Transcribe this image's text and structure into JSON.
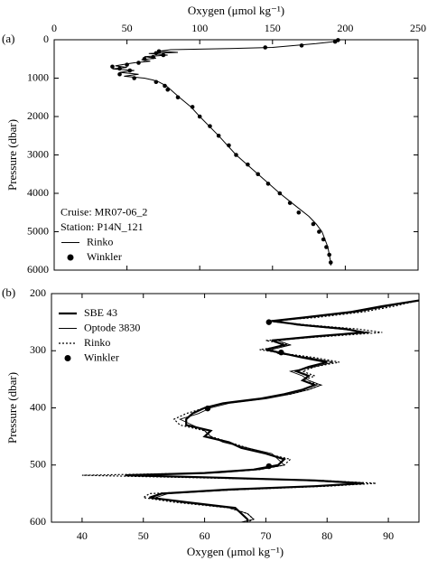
{
  "chart_data": [
    {
      "type": "line",
      "panel_label": "(a)",
      "x_label": "Oxygen (μmol kg⁻¹)",
      "y_label": "Pressure (dbar)",
      "xlim": [
        0,
        250
      ],
      "xticks": [
        0,
        50,
        100,
        150,
        200,
        250
      ],
      "x_axis_position": "top",
      "ylim": [
        0,
        6000
      ],
      "yticks": [
        0,
        1000,
        2000,
        3000,
        4000,
        5000,
        6000
      ],
      "y_inverted": true,
      "legend": "lower left",
      "annotations": [
        "Cruise: MR07-06_2",
        "Station: P14N_121"
      ],
      "series": [
        {
          "name": "Rinko",
          "color": "#000000",
          "style": "solid",
          "width": 1,
          "x": [
            196,
            195,
            190,
            180,
            165,
            150,
            120,
            80,
            72,
            85,
            65,
            78,
            62,
            70,
            60,
            66,
            55,
            48,
            42,
            50,
            40,
            55,
            45,
            58,
            48,
            62,
            68,
            72,
            77,
            80,
            83,
            86,
            94,
            100,
            113,
            125,
            140,
            155,
            165,
            175,
            180,
            184,
            188,
            190,
            190
          ],
          "y": [
            5,
            30,
            60,
            100,
            150,
            200,
            230,
            260,
            300,
            330,
            360,
            400,
            440,
            480,
            520,
            560,
            600,
            640,
            680,
            720,
            760,
            800,
            850,
            900,
            950,
            1000,
            1050,
            1100,
            1200,
            1300,
            1400,
            1500,
            1750,
            2000,
            2500,
            3000,
            3500,
            4000,
            4300,
            4600,
            4800,
            5000,
            5400,
            5800,
            5880
          ]
        },
        {
          "name": "Winkler",
          "color": "#000000",
          "style": "points",
          "x": [
            195,
            193,
            170,
            145,
            72,
            70,
            75,
            68,
            62,
            58,
            50,
            40,
            45,
            52,
            45,
            55,
            70,
            76,
            78,
            85,
            95,
            100,
            107,
            113,
            120,
            125,
            133,
            140,
            147,
            155,
            162,
            168,
            178,
            182,
            185,
            187,
            189,
            190
          ],
          "y": [
            10,
            50,
            150,
            200,
            300,
            350,
            400,
            450,
            500,
            600,
            650,
            700,
            750,
            800,
            900,
            1000,
            1100,
            1200,
            1300,
            1500,
            1750,
            2000,
            2250,
            2500,
            2750,
            3000,
            3250,
            3500,
            3750,
            4000,
            4250,
            4500,
            4800,
            5000,
            5200,
            5400,
            5600,
            5800
          ]
        }
      ]
    },
    {
      "type": "line",
      "panel_label": "(b)",
      "x_label": "Oxygen (μmol kg⁻¹)",
      "y_label": "Pressure (dbar)",
      "xlim": [
        35,
        95
      ],
      "xticks": [
        40,
        50,
        60,
        70,
        80,
        90
      ],
      "x_axis_position": "bottom",
      "ylim": [
        200,
        600
      ],
      "yticks": [
        200,
        300,
        400,
        500,
        600
      ],
      "y_inverted": true,
      "legend": "upper left",
      "series": [
        {
          "name": "SBE 43",
          "color": "#000000",
          "style": "solid",
          "width": 2.2,
          "x": [
            95,
            89,
            84,
            76,
            71,
            76,
            83,
            86,
            78,
            71,
            73,
            70,
            73,
            76,
            80,
            77,
            75,
            77,
            76,
            78,
            76,
            73,
            69,
            63,
            60,
            58,
            57,
            57,
            61,
            60,
            64,
            66,
            70,
            73,
            72,
            68,
            60,
            47,
            62,
            78,
            86,
            78,
            64,
            53,
            51,
            57,
            65,
            66,
            67,
            67
          ],
          "y": [
            212,
            222,
            232,
            242,
            248,
            255,
            262,
            268,
            275,
            282,
            290,
            298,
            305,
            312,
            320,
            328,
            336,
            344,
            352,
            360,
            368,
            376,
            384,
            392,
            400,
            410,
            420,
            430,
            440,
            450,
            460,
            470,
            480,
            490,
            500,
            508,
            514,
            518,
            522,
            527,
            532,
            537,
            543,
            550,
            557,
            565,
            575,
            585,
            595,
            600
          ]
        },
        {
          "name": "Optode 3830",
          "color": "#000000",
          "style": "solid",
          "width": 0.9,
          "x": [
            95,
            90,
            85,
            77,
            72,
            75,
            82,
            87,
            79,
            72,
            74,
            71,
            72,
            77,
            81,
            78,
            74,
            76,
            77,
            79,
            77,
            74,
            70,
            64,
            61,
            59,
            56,
            58,
            60,
            61,
            63,
            67,
            71,
            72,
            73,
            69,
            62,
            48,
            60,
            76,
            85,
            79,
            66,
            54,
            52,
            56,
            64,
            67,
            68,
            66
          ],
          "y": [
            212,
            222,
            232,
            242,
            248,
            255,
            262,
            268,
            275,
            282,
            290,
            298,
            305,
            312,
            320,
            328,
            336,
            344,
            352,
            360,
            368,
            376,
            384,
            392,
            400,
            410,
            420,
            430,
            440,
            450,
            460,
            470,
            480,
            490,
            500,
            508,
            514,
            518,
            522,
            527,
            532,
            537,
            543,
            550,
            557,
            565,
            575,
            585,
            595,
            600
          ]
        },
        {
          "name": "Rinko",
          "color": "#000000",
          "style": "dotted",
          "width": 1.2,
          "x": [
            95,
            91,
            86,
            78,
            70,
            77,
            85,
            89,
            80,
            70,
            74,
            69,
            73,
            78,
            82,
            78,
            76,
            78,
            76,
            79,
            77,
            74,
            69,
            63,
            60,
            57,
            55,
            56,
            60,
            61,
            64,
            67,
            70,
            74,
            73,
            69,
            60,
            40,
            58,
            79,
            88,
            80,
            66,
            51,
            50,
            55,
            64,
            67,
            68,
            67
          ],
          "y": [
            212,
            222,
            232,
            242,
            248,
            255,
            262,
            268,
            275,
            282,
            290,
            298,
            305,
            312,
            320,
            328,
            336,
            344,
            352,
            360,
            368,
            376,
            384,
            392,
            400,
            410,
            420,
            430,
            440,
            450,
            460,
            470,
            480,
            490,
            500,
            508,
            514,
            518,
            522,
            527,
            532,
            537,
            543,
            550,
            557,
            565,
            575,
            585,
            595,
            600
          ]
        },
        {
          "name": "Winkler",
          "color": "#000000",
          "style": "points",
          "x": [
            70.5,
            72.5,
            60.5,
            70.5
          ],
          "y": [
            250,
            303,
            401,
            502
          ]
        }
      ]
    }
  ]
}
